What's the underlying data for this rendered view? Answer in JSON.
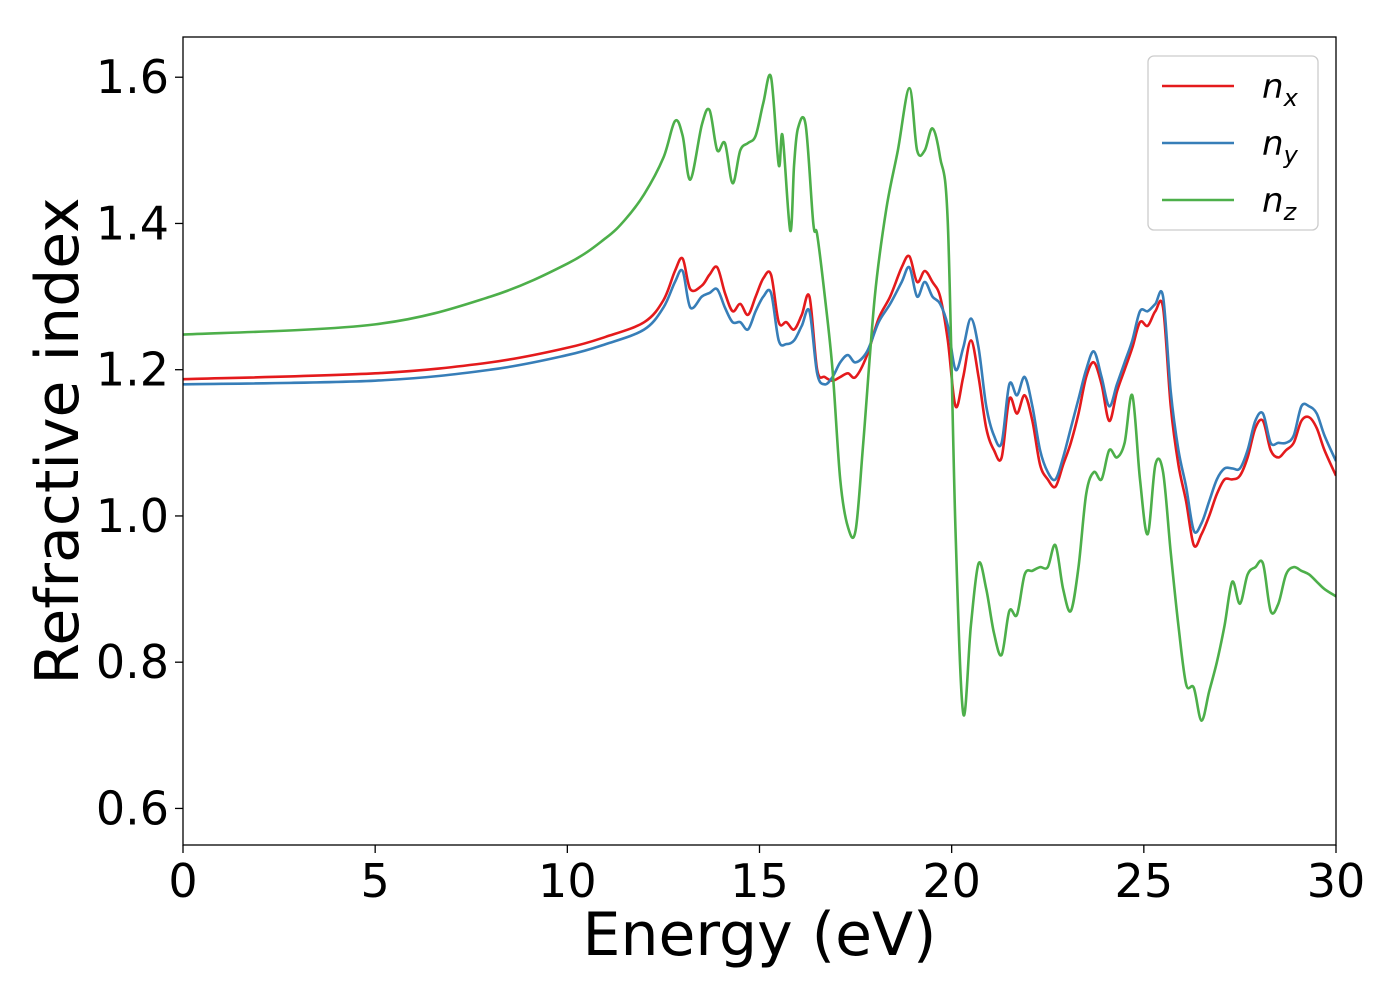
{
  "chart_data": {
    "type": "line",
    "xlabel": "Energy (eV)",
    "ylabel": "Refractive index",
    "xlim": [
      0,
      30
    ],
    "ylim": [
      0.55,
      1.655
    ],
    "xticks": [
      0,
      5,
      10,
      15,
      20,
      25,
      30
    ],
    "xtick_labels": [
      "0",
      "5",
      "10",
      "15",
      "20",
      "25",
      "30"
    ],
    "yticks": [
      0.6,
      0.8,
      1.0,
      1.2,
      1.4,
      1.6
    ],
    "ytick_labels": [
      "0.6",
      "0.8",
      "1.0",
      "1.2",
      "1.4",
      "1.6"
    ],
    "grid": false,
    "legend_position": "top-right",
    "series": [
      {
        "name": "n_x",
        "base": "n",
        "sub": "x",
        "color": "#e41a1c",
        "x": [
          0,
          5,
          8,
          10,
          11,
          12,
          12.5,
          12.8,
          13.0,
          13.2,
          13.5,
          13.7,
          13.9,
          14.1,
          14.3,
          14.5,
          14.7,
          14.9,
          15.1,
          15.3,
          15.5,
          15.7,
          15.9,
          16.1,
          16.3,
          16.5,
          16.7,
          16.9,
          17.1,
          17.3,
          17.5,
          17.8,
          18.1,
          18.4,
          18.7,
          18.9,
          19.1,
          19.3,
          19.5,
          19.7,
          19.9,
          20.1,
          20.3,
          20.5,
          20.7,
          20.9,
          21.1,
          21.3,
          21.5,
          21.7,
          21.9,
          22.1,
          22.3,
          22.5,
          22.7,
          22.9,
          23.1,
          23.3,
          23.5,
          23.7,
          23.9,
          24.1,
          24.3,
          24.5,
          24.7,
          24.9,
          25.1,
          25.3,
          25.5,
          25.7,
          25.9,
          26.1,
          26.3,
          26.5,
          26.7,
          26.9,
          27.1,
          27.3,
          27.5,
          27.7,
          27.9,
          28.1,
          28.3,
          28.5,
          28.7,
          28.9,
          29.1,
          29.3,
          29.5,
          29.7,
          30
        ],
        "y": [
          1.187,
          1.195,
          1.21,
          1.23,
          1.245,
          1.265,
          1.295,
          1.335,
          1.352,
          1.31,
          1.315,
          1.33,
          1.34,
          1.305,
          1.28,
          1.29,
          1.275,
          1.3,
          1.325,
          1.33,
          1.265,
          1.265,
          1.255,
          1.275,
          1.3,
          1.2,
          1.19,
          1.185,
          1.19,
          1.195,
          1.19,
          1.22,
          1.27,
          1.3,
          1.34,
          1.355,
          1.32,
          1.335,
          1.32,
          1.3,
          1.24,
          1.15,
          1.19,
          1.24,
          1.19,
          1.12,
          1.09,
          1.08,
          1.16,
          1.14,
          1.165,
          1.13,
          1.07,
          1.05,
          1.04,
          1.07,
          1.1,
          1.14,
          1.19,
          1.21,
          1.18,
          1.13,
          1.17,
          1.2,
          1.23,
          1.265,
          1.26,
          1.28,
          1.285,
          1.15,
          1.07,
          1.02,
          0.96,
          0.975,
          1.0,
          1.03,
          1.05,
          1.05,
          1.055,
          1.08,
          1.12,
          1.13,
          1.09,
          1.08,
          1.09,
          1.1,
          1.13,
          1.135,
          1.12,
          1.09,
          1.055
        ]
      },
      {
        "name": "n_y",
        "base": "n",
        "sub": "y",
        "color": "#377eb8",
        "x": [
          0,
          5,
          8,
          10,
          11,
          12,
          12.5,
          12.8,
          13.0,
          13.2,
          13.5,
          13.7,
          13.9,
          14.1,
          14.3,
          14.5,
          14.7,
          14.9,
          15.1,
          15.3,
          15.5,
          15.7,
          15.9,
          16.1,
          16.3,
          16.5,
          16.7,
          16.9,
          17.1,
          17.3,
          17.5,
          17.8,
          18.1,
          18.4,
          18.7,
          18.9,
          19.1,
          19.3,
          19.5,
          19.7,
          19.9,
          20.1,
          20.3,
          20.5,
          20.7,
          20.9,
          21.1,
          21.3,
          21.5,
          21.7,
          21.9,
          22.1,
          22.3,
          22.5,
          22.7,
          22.9,
          23.1,
          23.3,
          23.5,
          23.7,
          23.9,
          24.1,
          24.3,
          24.5,
          24.7,
          24.9,
          25.1,
          25.3,
          25.5,
          25.7,
          25.9,
          26.1,
          26.3,
          26.5,
          26.7,
          26.9,
          27.1,
          27.3,
          27.5,
          27.7,
          27.9,
          28.1,
          28.3,
          28.5,
          28.7,
          28.9,
          29.1,
          29.3,
          29.5,
          29.7,
          30
        ],
        "y": [
          1.18,
          1.185,
          1.2,
          1.22,
          1.235,
          1.255,
          1.285,
          1.32,
          1.335,
          1.285,
          1.3,
          1.305,
          1.31,
          1.285,
          1.265,
          1.265,
          1.255,
          1.28,
          1.3,
          1.305,
          1.24,
          1.235,
          1.24,
          1.26,
          1.28,
          1.195,
          1.18,
          1.19,
          1.21,
          1.22,
          1.21,
          1.225,
          1.265,
          1.29,
          1.32,
          1.34,
          1.3,
          1.32,
          1.3,
          1.29,
          1.26,
          1.2,
          1.23,
          1.27,
          1.23,
          1.15,
          1.11,
          1.1,
          1.18,
          1.165,
          1.19,
          1.15,
          1.09,
          1.06,
          1.05,
          1.08,
          1.12,
          1.16,
          1.2,
          1.225,
          1.19,
          1.15,
          1.18,
          1.21,
          1.24,
          1.28,
          1.28,
          1.29,
          1.3,
          1.17,
          1.09,
          1.04,
          0.98,
          0.99,
          1.02,
          1.05,
          1.065,
          1.065,
          1.065,
          1.09,
          1.13,
          1.14,
          1.1,
          1.1,
          1.1,
          1.11,
          1.15,
          1.15,
          1.14,
          1.11,
          1.075
        ]
      },
      {
        "name": "n_z",
        "base": "n",
        "sub": "z",
        "color": "#4daf4a",
        "x": [
          0,
          5,
          8,
          10,
          11,
          11.5,
          12,
          12.5,
          12.8,
          13.0,
          13.2,
          13.5,
          13.7,
          13.9,
          14.1,
          14.3,
          14.5,
          14.7,
          14.9,
          15.1,
          15.3,
          15.5,
          15.6,
          15.8,
          15.9,
          16.0,
          16.2,
          16.4,
          16.5,
          16.7,
          16.9,
          17.1,
          17.3,
          17.5,
          17.7,
          18.0,
          18.3,
          18.6,
          18.9,
          19.1,
          19.3,
          19.5,
          19.7,
          19.9,
          20.1,
          20.3,
          20.5,
          20.7,
          20.9,
          21.1,
          21.3,
          21.5,
          21.7,
          21.9,
          22.1,
          22.3,
          22.5,
          22.7,
          22.9,
          23.1,
          23.3,
          23.5,
          23.7,
          23.9,
          24.1,
          24.3,
          24.5,
          24.7,
          24.9,
          25.1,
          25.3,
          25.5,
          25.7,
          25.9,
          26.1,
          26.3,
          26.5,
          26.7,
          26.9,
          27.1,
          27.3,
          27.5,
          27.7,
          27.9,
          28.1,
          28.3,
          28.5,
          28.7,
          28.9,
          29.1,
          29.3,
          29.5,
          29.7,
          30
        ],
        "y": [
          1.248,
          1.262,
          1.3,
          1.345,
          1.38,
          1.405,
          1.44,
          1.49,
          1.54,
          1.52,
          1.46,
          1.535,
          1.555,
          1.5,
          1.51,
          1.455,
          1.5,
          1.51,
          1.52,
          1.565,
          1.6,
          1.48,
          1.52,
          1.39,
          1.48,
          1.53,
          1.535,
          1.4,
          1.385,
          1.3,
          1.2,
          1.05,
          0.985,
          0.98,
          1.1,
          1.3,
          1.42,
          1.5,
          1.585,
          1.5,
          1.5,
          1.53,
          1.49,
          1.4,
          0.98,
          0.73,
          0.85,
          0.935,
          0.9,
          0.84,
          0.81,
          0.87,
          0.865,
          0.92,
          0.925,
          0.93,
          0.93,
          0.96,
          0.9,
          0.87,
          0.93,
          1.03,
          1.06,
          1.05,
          1.09,
          1.08,
          1.1,
          1.165,
          1.05,
          0.975,
          1.07,
          1.06,
          0.95,
          0.85,
          0.77,
          0.765,
          0.72,
          0.76,
          0.8,
          0.85,
          0.91,
          0.88,
          0.92,
          0.93,
          0.935,
          0.87,
          0.88,
          0.92,
          0.93,
          0.925,
          0.92,
          0.91,
          0.9,
          0.89
        ]
      }
    ]
  }
}
